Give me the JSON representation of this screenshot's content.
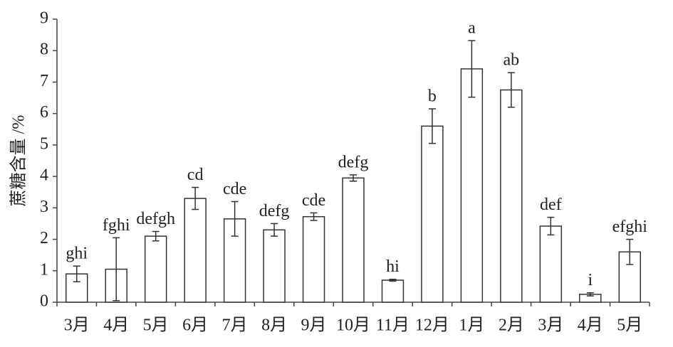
{
  "chart_data": {
    "type": "bar",
    "ylabel": "蔗糖含量 /%",
    "categories": [
      "3月",
      "4月",
      "5月",
      "6月",
      "7月",
      "8月",
      "9月",
      "10月",
      "11月",
      "12月",
      "1月",
      "2月",
      "3月",
      "4月",
      "5月"
    ],
    "values": [
      0.9,
      1.05,
      2.1,
      3.3,
      2.65,
      2.3,
      2.72,
      3.95,
      0.7,
      5.6,
      7.42,
      6.75,
      2.42,
      0.25,
      1.6
    ],
    "errors": [
      0.25,
      1.0,
      0.15,
      0.35,
      0.55,
      0.2,
      0.12,
      0.1,
      0.03,
      0.55,
      0.9,
      0.55,
      0.28,
      0.05,
      0.4
    ],
    "annotations": [
      "ghi",
      "fghi",
      "defgh",
      "cd",
      "cde",
      "defg",
      "cde",
      "defg",
      "hi",
      "b",
      "a",
      "ab",
      "def",
      "i",
      "efghi"
    ],
    "color": "#ffffff",
    "ylim": [
      0,
      9
    ],
    "yticks": [
      0,
      1,
      2,
      3,
      4,
      5,
      6,
      7,
      8,
      9
    ]
  }
}
